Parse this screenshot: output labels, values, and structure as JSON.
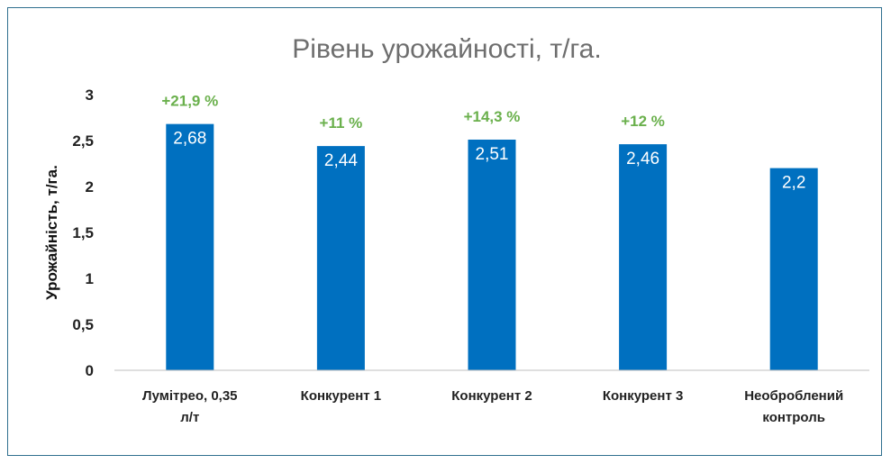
{
  "chart_data": {
    "type": "bar",
    "title": "Рівень урожайності, т/га.",
    "xlabel": "",
    "ylabel": "Урожайність, т/га.",
    "categories": [
      [
        "Лумітрео, 0,35",
        "л/т"
      ],
      [
        "Конкурент 1"
      ],
      [
        "Конкурент 2"
      ],
      [
        "Конкурент 3"
      ],
      [
        "Необроблений",
        "контроль"
      ]
    ],
    "values": [
      2.68,
      2.44,
      2.51,
      2.46,
      2.2
    ],
    "value_labels": [
      "2,68",
      "2,44",
      "2,51",
      "2,46",
      "2,2"
    ],
    "annotations": [
      "+21,9 %",
      "+11 %",
      "+14,3 %",
      "+12 %",
      ""
    ],
    "ylim": [
      0,
      3
    ],
    "yticks": [
      0,
      0.5,
      1,
      1.5,
      2,
      2.5,
      3
    ],
    "ytick_labels": [
      "0",
      "0,5",
      "1",
      "1,5",
      "2",
      "2,5",
      "3"
    ],
    "grid": false,
    "legend": "none",
    "colors": {
      "bar": "#0070c0",
      "annotation": "#6ab04c",
      "axis": "#bfbfbf",
      "frame": "#2f6f8f"
    }
  }
}
